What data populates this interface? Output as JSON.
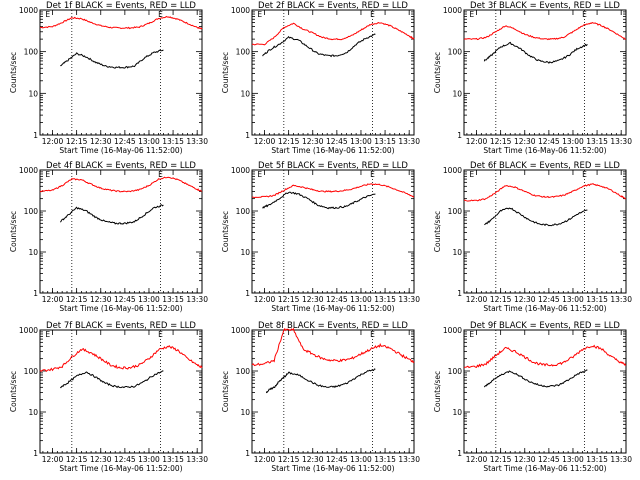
{
  "chart_data": {
    "type": "line",
    "layout": "3x3 grid",
    "y_scale": "log",
    "ylim": [
      1,
      1000
    ],
    "xlim": [
      11.87,
      13.55
    ],
    "x_unit": "hours",
    "ylabel": "Counts/sec",
    "xlabel": "Start Time (16-May-06 11:52:00)",
    "x_tick_values": [
      12.0,
      12.25,
      12.5,
      12.75,
      13.0,
      13.25,
      13.5
    ],
    "x_tick_labels": [
      "12:00",
      "12:15",
      "12:30",
      "12:45",
      "13:00",
      "13:15",
      "13:30"
    ],
    "y_tick_values": [
      1,
      10,
      100,
      1000
    ],
    "y_tick_labels": [
      "1",
      "10",
      "100",
      "1000"
    ],
    "series_colors": {
      "BLACK = Events": "#000000",
      "RED = LLD": "#ff0000"
    },
    "panels": [
      {
        "title": "Det 1f BLACK = Events, RED = LLD",
        "vlines": [
          12.2,
          13.12
        ],
        "markers": [
          {
            "label": "E",
            "x": 11.95
          },
          {
            "label": "E",
            "x": 13.12
          }
        ],
        "series": [
          {
            "name": "RED = LLD",
            "x": [
              11.87,
              12.0,
              12.1,
              12.2,
              12.3,
              12.4,
              12.5,
              12.6,
              12.7,
              12.8,
              12.9,
              13.0,
              13.1,
              13.2,
              13.3,
              13.4,
              13.5,
              13.55
            ],
            "values": [
              380,
              400,
              500,
              650,
              620,
              500,
              420,
              380,
              370,
              370,
              390,
              480,
              630,
              700,
              600,
              480,
              380,
              350
            ]
          },
          {
            "name": "BLACK = Events",
            "x": [
              12.08,
              12.15,
              12.25,
              12.35,
              12.45,
              12.55,
              12.65,
              12.75,
              12.85,
              12.95,
              13.05,
              13.15
            ],
            "values": [
              45,
              60,
              90,
              75,
              55,
              45,
              42,
              42,
              45,
              70,
              95,
              110
            ]
          }
        ]
      },
      {
        "title": "Det 2f BLACK = Events, RED = LLD",
        "vlines": [
          12.2,
          13.12
        ],
        "markers": [
          {
            "label": "E",
            "x": 11.95
          },
          {
            "label": "E",
            "x": 13.12
          }
        ],
        "series": [
          {
            "name": "RED = LLD",
            "x": [
              11.87,
              12.0,
              12.1,
              12.2,
              12.3,
              12.4,
              12.5,
              12.6,
              12.7,
              12.8,
              12.9,
              13.0,
              13.1,
              13.2,
              13.3,
              13.4,
              13.5,
              13.55
            ],
            "values": [
              150,
              150,
              220,
              380,
              480,
              350,
              280,
              220,
              200,
              200,
              240,
              330,
              450,
              500,
              420,
              320,
              240,
              200
            ]
          },
          {
            "name": "BLACK = Events",
            "x": [
              11.98,
              12.05,
              12.15,
              12.25,
              12.35,
              12.45,
              12.55,
              12.65,
              12.75,
              12.85,
              12.95,
              13.05,
              13.15
            ],
            "values": [
              80,
              110,
              150,
              220,
              190,
              130,
              90,
              80,
              80,
              95,
              150,
              210,
              260
            ]
          }
        ]
      },
      {
        "title": "Det 3f BLACK = Events, RED = LLD",
        "vlines": [
          12.2,
          13.12
        ],
        "markers": [
          {
            "label": "E",
            "x": 11.95
          },
          {
            "label": "E",
            "x": 13.12
          }
        ],
        "series": [
          {
            "name": "RED = LLD",
            "x": [
              11.87,
              12.0,
              12.1,
              12.2,
              12.3,
              12.4,
              12.5,
              12.6,
              12.7,
              12.8,
              12.9,
              13.0,
              13.1,
              13.2,
              13.3,
              13.4,
              13.5,
              13.55
            ],
            "values": [
              200,
              200,
              220,
              300,
              420,
              350,
              260,
              220,
              200,
              200,
              220,
              300,
              420,
              500,
              420,
              320,
              230,
              200
            ]
          },
          {
            "name": "BLACK = Events",
            "x": [
              12.08,
              12.15,
              12.25,
              12.35,
              12.45,
              12.55,
              12.65,
              12.75,
              12.85,
              12.95,
              13.05,
              13.15
            ],
            "values": [
              60,
              80,
              130,
              160,
              120,
              80,
              60,
              55,
              60,
              80,
              120,
              150
            ]
          }
        ]
      },
      {
        "title": "Det 4f BLACK = Events, RED = LLD",
        "vlines": [
          12.2,
          13.12
        ],
        "markers": [
          {
            "label": "E",
            "x": 11.95
          },
          {
            "label": "E",
            "x": 13.12
          }
        ],
        "series": [
          {
            "name": "RED = LLD",
            "x": [
              11.87,
              12.0,
              12.1,
              12.2,
              12.3,
              12.4,
              12.5,
              12.6,
              12.7,
              12.8,
              12.9,
              13.0,
              13.1,
              13.2,
              13.3,
              13.4,
              13.5,
              13.55
            ],
            "values": [
              300,
              320,
              420,
              600,
              580,
              450,
              360,
              320,
              300,
              300,
              330,
              420,
              600,
              680,
              580,
              440,
              340,
              300
            ]
          },
          {
            "name": "BLACK = Events",
            "x": [
              12.08,
              12.15,
              12.25,
              12.35,
              12.45,
              12.55,
              12.65,
              12.75,
              12.85,
              12.95,
              13.05,
              13.15
            ],
            "values": [
              55,
              75,
              120,
              100,
              70,
              55,
              50,
              50,
              55,
              80,
              120,
              140
            ]
          }
        ]
      },
      {
        "title": "Det 5f BLACK = Events, RED = LLD",
        "vlines": [
          12.2,
          13.12
        ],
        "markers": [
          {
            "label": "E",
            "x": 11.95
          },
          {
            "label": "E",
            "x": 13.12
          }
        ],
        "series": [
          {
            "name": "RED = LLD",
            "x": [
              11.87,
              12.0,
              12.1,
              12.2,
              12.3,
              12.4,
              12.5,
              12.6,
              12.7,
              12.8,
              12.9,
              13.0,
              13.1,
              13.2,
              13.3,
              13.4,
              13.5,
              13.55
            ],
            "values": [
              220,
              220,
              240,
              320,
              420,
              380,
              330,
              300,
              300,
              310,
              340,
              400,
              460,
              440,
              380,
              310,
              250,
              220
            ]
          },
          {
            "name": "BLACK = Events",
            "x": [
              11.98,
              12.05,
              12.15,
              12.25,
              12.35,
              12.45,
              12.55,
              12.65,
              12.75,
              12.85,
              12.95,
              13.05,
              13.15
            ],
            "values": [
              120,
              140,
              200,
              290,
              260,
              200,
              140,
              120,
              120,
              130,
              170,
              220,
              260
            ]
          }
        ]
      },
      {
        "title": "Det 6f BLACK = Events, RED = LLD",
        "vlines": [
          12.2,
          13.12
        ],
        "markers": [
          {
            "label": "E",
            "x": 11.95
          },
          {
            "label": "E",
            "x": 13.12
          }
        ],
        "series": [
          {
            "name": "RED = LLD",
            "x": [
              11.87,
              12.0,
              12.1,
              12.2,
              12.3,
              12.4,
              12.5,
              12.6,
              12.7,
              12.8,
              12.9,
              13.0,
              13.1,
              13.2,
              13.3,
              13.4,
              13.5,
              13.55
            ],
            "values": [
              180,
              180,
              200,
              280,
              420,
              380,
              300,
              240,
              220,
              220,
              240,
              300,
              400,
              450,
              400,
              320,
              230,
              200
            ]
          },
          {
            "name": "BLACK = Events",
            "x": [
              12.08,
              12.15,
              12.25,
              12.35,
              12.45,
              12.55,
              12.65,
              12.75,
              12.85,
              12.95,
              13.05,
              13.15
            ],
            "values": [
              45,
              60,
              100,
              120,
              85,
              60,
              48,
              45,
              48,
              60,
              85,
              105
            ]
          }
        ]
      },
      {
        "title": "Det 7f BLACK = Events, RED = LLD",
        "vlines": [
          12.2,
          13.12
        ],
        "markers": [
          {
            "label": "E",
            "x": 11.95
          },
          {
            "label": "E",
            "x": 13.12
          }
        ],
        "series": [
          {
            "name": "RED = LLD",
            "x": [
              11.87,
              12.0,
              12.1,
              12.2,
              12.3,
              12.4,
              12.5,
              12.6,
              12.7,
              12.8,
              12.9,
              13.0,
              13.1,
              13.2,
              13.3,
              13.4,
              13.5,
              13.55
            ],
            "values": [
              100,
              110,
              130,
              220,
              340,
              280,
              200,
              140,
              120,
              120,
              140,
              200,
              330,
              400,
              320,
              200,
              140,
              120
            ]
          },
          {
            "name": "BLACK = Events",
            "x": [
              12.08,
              12.15,
              12.25,
              12.35,
              12.45,
              12.55,
              12.65,
              12.75,
              12.85,
              12.95,
              13.05,
              13.15
            ],
            "values": [
              40,
              50,
              75,
              95,
              70,
              50,
              42,
              40,
              42,
              55,
              80,
              100
            ]
          }
        ]
      },
      {
        "title": "Det 8f BLACK = Events, RED = LLD",
        "vlines": [
          12.2,
          13.12
        ],
        "markers": [
          {
            "label": "E",
            "x": 11.95
          },
          {
            "label": "E",
            "x": 13.12
          }
        ],
        "series": [
          {
            "name": "RED = LLD",
            "x": [
              11.87,
              12.0,
              12.1,
              12.2,
              12.3,
              12.4,
              12.5,
              12.6,
              12.7,
              12.8,
              12.9,
              13.0,
              13.1,
              13.2,
              13.3,
              13.4,
              13.5,
              13.55
            ],
            "values": [
              140,
              150,
              180,
              1000,
              1000,
              340,
              260,
              200,
              180,
              180,
              200,
              260,
              340,
              420,
              360,
              260,
              190,
              170
            ]
          },
          {
            "name": "BLACK = Events",
            "x": [
              12.02,
              12.05,
              12.1,
              12.15,
              12.2,
              12.25,
              12.35,
              12.45,
              12.55,
              12.65,
              12.75,
              12.85,
              12.95,
              13.05,
              13.15
            ],
            "values": [
              30,
              35,
              40,
              55,
              70,
              90,
              80,
              60,
              45,
              40,
              42,
              50,
              70,
              95,
              110
            ]
          }
        ]
      },
      {
        "title": "Det 9f BLACK = Events, RED = LLD",
        "vlines": [
          12.2,
          13.12
        ],
        "markers": [
          {
            "label": "E",
            "x": 11.95
          },
          {
            "label": "E",
            "x": 13.12
          }
        ],
        "series": [
          {
            "name": "RED = LLD",
            "x": [
              11.87,
              12.0,
              12.1,
              12.2,
              12.3,
              12.4,
              12.5,
              12.6,
              12.7,
              12.8,
              12.9,
              13.0,
              13.1,
              13.2,
              13.3,
              13.4,
              13.5,
              13.55
            ],
            "values": [
              120,
              130,
              150,
              240,
              360,
              300,
              220,
              160,
              140,
              140,
              160,
              220,
              340,
              420,
              340,
              220,
              160,
              140
            ]
          },
          {
            "name": "BLACK = Events",
            "x": [
              12.08,
              12.15,
              12.25,
              12.35,
              12.45,
              12.55,
              12.65,
              12.75,
              12.85,
              12.95,
              13.05,
              13.15
            ],
            "values": [
              40,
              55,
              80,
              100,
              75,
              55,
              45,
              42,
              45,
              60,
              85,
              105
            ]
          }
        ]
      }
    ]
  }
}
